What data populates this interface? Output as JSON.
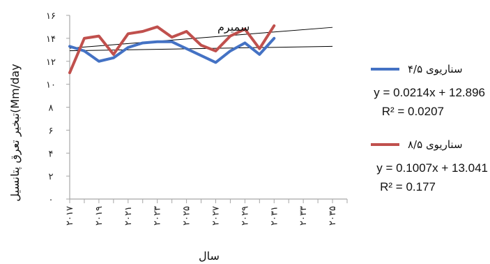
{
  "chart_data": {
    "type": "line",
    "title": "",
    "xlabel": "سال",
    "ylabel": "تبخیر تعرق پتانسیل(Mm/day",
    "ylim": [
      0,
      16
    ],
    "x_years": [
      2017,
      2018,
      2019,
      2020,
      2021,
      2022,
      2023,
      2024,
      2025,
      2026,
      2027,
      2028,
      2029,
      2030,
      2031
    ],
    "x_tick_labels": [
      "۲۰۱۷",
      "۲۰۱۹",
      "۲۰۲۱",
      "۲۰۲۳",
      "۲۰۲۵",
      "۲۰۲۷",
      "۲۰۲۹",
      "۲۰۳۱",
      "۲۰۳۳",
      "۲۰۳۵"
    ],
    "y_tick_labels": [
      "۰",
      "۲",
      "۴",
      "۶",
      "۸",
      "۱۰",
      "۱۲",
      "۱۴",
      "۱۶"
    ],
    "y_tick_values": [
      0,
      2,
      4,
      6,
      8,
      10,
      12,
      14,
      16
    ],
    "x_axis_end": 2036,
    "annotation": "سمیرم",
    "grid": false,
    "legend_position": "right",
    "series": [
      {
        "name": "سناریوی ۴/۵",
        "color": "#4472c4",
        "values": [
          13.3,
          12.9,
          12.0,
          12.3,
          13.2,
          13.6,
          13.7,
          13.7,
          13.1,
          12.5,
          11.9,
          12.9,
          13.6,
          12.6,
          14.0
        ],
        "trendline": {
          "slope": 0.0214,
          "intercept": 12.896,
          "equation": "y = 0.0214x + 12.896",
          "r2": "R² = 0.0207"
        }
      },
      {
        "name": "سناریوی ۸/۵",
        "color": "#c0504d",
        "values": [
          11.0,
          14.0,
          14.2,
          12.6,
          14.4,
          14.6,
          15.0,
          14.1,
          14.6,
          13.4,
          12.9,
          14.2,
          14.8,
          13.1,
          15.1
        ],
        "trendline": {
          "slope": 0.1007,
          "intercept": 13.041,
          "equation": "y = 0.1007x + 13.041",
          "r2": "R² = 0.177"
        }
      }
    ]
  }
}
